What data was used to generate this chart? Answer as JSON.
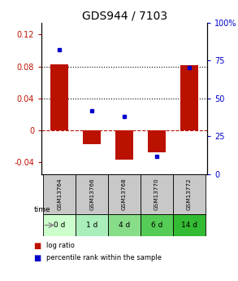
{
  "title": "GDS944 / 7103",
  "samples": [
    "GSM13764",
    "GSM13766",
    "GSM13768",
    "GSM13770",
    "GSM13772"
  ],
  "time_labels": [
    "0 d",
    "1 d",
    "4 d",
    "6 d",
    "14 d"
  ],
  "log_ratios": [
    0.083,
    -0.017,
    -0.037,
    -0.028,
    0.082
  ],
  "percentile_ranks": [
    82,
    42,
    38,
    12,
    70
  ],
  "bar_color": "#bb1100",
  "dot_color": "#0000cc",
  "left_ylim": [
    -0.055,
    0.135
  ],
  "right_ylim": [
    0,
    100
  ],
  "left_yticks": [
    -0.04,
    0,
    0.04,
    0.08,
    0.12
  ],
  "right_yticks": [
    0,
    25,
    50,
    75,
    100
  ],
  "hline_dotted": [
    0.08,
    0.04
  ],
  "hline_dashed": 0.0,
  "title_fontsize": 10,
  "tick_fontsize": 7,
  "sample_gray": "#c8c8c8",
  "time_greens": [
    "#ccffcc",
    "#aaeebb",
    "#88dd88",
    "#55cc55",
    "#33bb33"
  ],
  "legend_red": "#bb1100",
  "legend_blue": "#0000cc"
}
